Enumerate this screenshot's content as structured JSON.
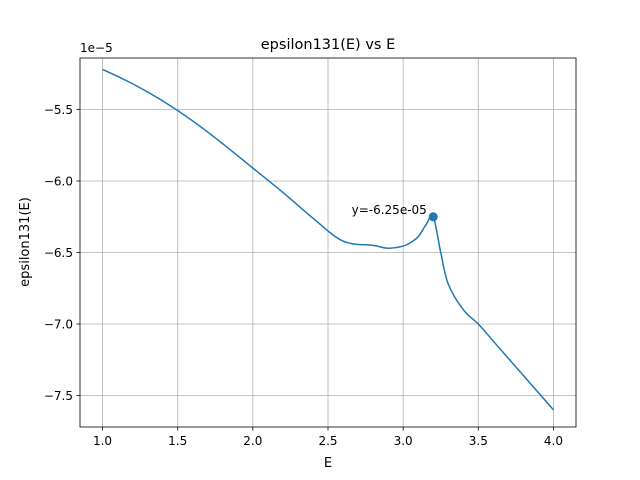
{
  "chart_data": {
    "type": "line",
    "title": "epsilon131(E) vs E",
    "xlabel": "E",
    "ylabel": "epsilon131(E)",
    "offset_label": "1e−5",
    "xlim": [
      0.85,
      4.15
    ],
    "ylim": [
      -7.72e-05,
      -5.14e-05
    ],
    "xticks": [
      1.0,
      1.5,
      2.0,
      2.5,
      3.0,
      3.5,
      4.0
    ],
    "xtick_labels": [
      "1.0",
      "1.5",
      "2.0",
      "2.5",
      "3.0",
      "3.5",
      "4.0"
    ],
    "yticks": [
      -5.5e-05,
      -6e-05,
      -6.5e-05,
      -7e-05,
      -7.5e-05
    ],
    "ytick_labels": [
      "−5.5",
      "−6.0",
      "−6.5",
      "−7.0",
      "−7.5"
    ],
    "grid": true,
    "series": [
      {
        "color": "#1f77b4",
        "x": [
          1.0,
          1.2,
          1.4,
          1.6,
          1.8,
          2.0,
          2.2,
          2.4,
          2.6,
          2.8,
          2.9,
          3.0,
          3.05,
          3.1,
          3.15,
          3.2,
          3.25,
          3.3,
          3.4,
          3.5,
          3.6,
          3.7,
          3.8,
          3.9,
          4.0
        ],
        "y": [
          -5.22e-05,
          -5.32e-05,
          -5.44e-05,
          -5.58e-05,
          -5.74e-05,
          -5.91e-05,
          -6.08e-05,
          -6.26e-05,
          -6.42e-05,
          -6.45e-05,
          -6.47e-05,
          -6.455e-05,
          -6.43e-05,
          -6.39e-05,
          -6.31e-05,
          -6.25e-05,
          -6.5e-05,
          -6.72e-05,
          -6.9e-05,
          -7e-05,
          -7.12e-05,
          -7.24e-05,
          -7.36e-05,
          -7.48e-05,
          -7.6e-05
        ]
      }
    ],
    "annotation": {
      "x": 3.2,
      "y": -6.25e-05,
      "text": "y=-6.25e-05"
    }
  }
}
